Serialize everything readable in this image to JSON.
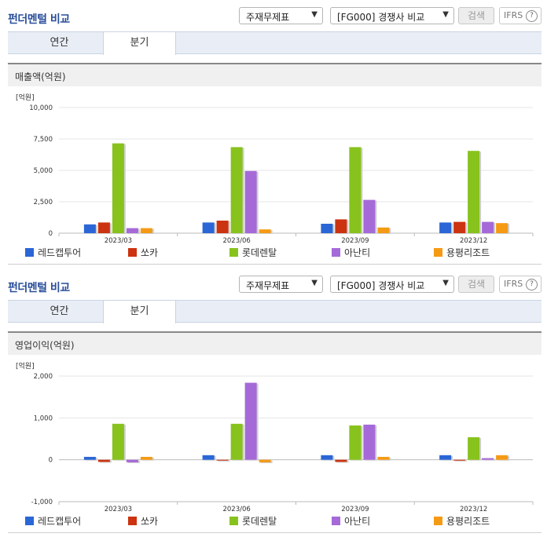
{
  "panels": [
    {
      "title": "펀더멘털 비교",
      "select1": "주재무제표",
      "select2": "[FG000] 경쟁사 비교",
      "search_label": "검색",
      "ifrs_label": "IFRS",
      "help_glyph": "?",
      "tabs": [
        "연간",
        "분기"
      ],
      "active_tab": "분기",
      "section_label": "매출액(억원)",
      "unit": "[억원]"
    },
    {
      "title": "펀더멘털 비교",
      "select1": "주재무제표",
      "select2": "[FG000] 경쟁사 비교",
      "search_label": "검색",
      "ifrs_label": "IFRS",
      "help_glyph": "?",
      "tabs": [
        "연간",
        "분기"
      ],
      "active_tab": "분기",
      "section_label": "영업이익(억원)",
      "unit": "[억원]"
    }
  ],
  "icons": {
    "select_arrow": "chevron-down-icon",
    "help": "question-circle-icon"
  },
  "colors": {
    "title": "#2a4e9a",
    "series": [
      "#2a66d6",
      "#cc3311",
      "#88c21d",
      "#a56ad8",
      "#f59a14"
    ]
  },
  "chart_data": [
    {
      "type": "bar",
      "title": "매출액(억원)",
      "ylabel": "[억원]",
      "categories": [
        "2023/03",
        "2023/06",
        "2023/09",
        "2023/12"
      ],
      "ylim": [
        0,
        10000
      ],
      "yticks": [
        0,
        2500,
        5000,
        7500,
        10000
      ],
      "ytick_labels": [
        "0",
        "2,500",
        "5,000",
        "7,500",
        "10,000"
      ],
      "series": [
        {
          "name": "레드캡투어",
          "values": [
            700,
            850,
            750,
            850
          ]
        },
        {
          "name": "쏘카",
          "values": [
            850,
            1000,
            1100,
            900
          ]
        },
        {
          "name": "롯데렌탈",
          "values": [
            7150,
            6850,
            6850,
            6550
          ]
        },
        {
          "name": "아난티",
          "values": [
            400,
            4950,
            2650,
            900
          ]
        },
        {
          "name": "용평리조트",
          "values": [
            400,
            300,
            450,
            800
          ]
        }
      ],
      "legend": "bottom",
      "grid": true
    },
    {
      "type": "bar",
      "title": "영업이익(억원)",
      "ylabel": "[억원]",
      "categories": [
        "2023/03",
        "2023/06",
        "2023/09",
        "2023/12"
      ],
      "ylim": [
        -1000,
        2000
      ],
      "yticks": [
        -1000,
        0,
        1000,
        2000
      ],
      "ytick_labels": [
        "-1,000",
        "0",
        "1,000",
        "2,000"
      ],
      "series": [
        {
          "name": "레드캡투어",
          "values": [
            70,
            110,
            110,
            110
          ]
        },
        {
          "name": "쏘카",
          "values": [
            -50,
            -20,
            -50,
            -20
          ]
        },
        {
          "name": "롯데렌탈",
          "values": [
            860,
            860,
            820,
            540
          ]
        },
        {
          "name": "아난티",
          "values": [
            -60,
            1840,
            840,
            40
          ]
        },
        {
          "name": "용평리조트",
          "values": [
            70,
            -60,
            70,
            110
          ]
        }
      ],
      "legend": "bottom",
      "grid": true
    }
  ]
}
